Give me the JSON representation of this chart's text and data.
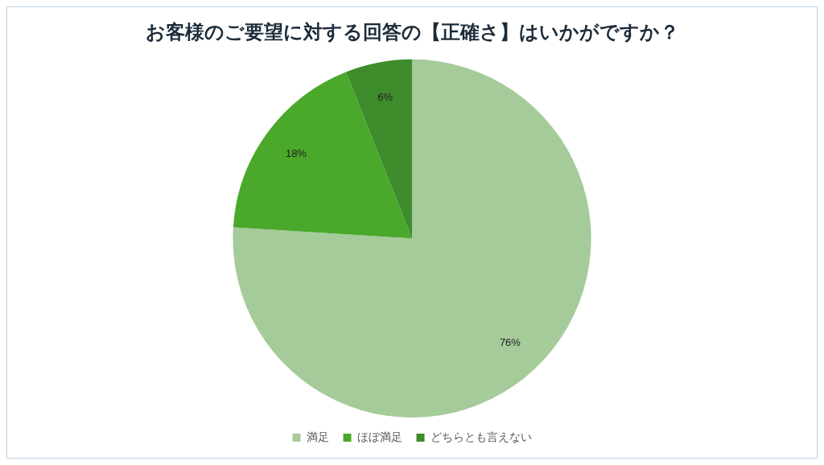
{
  "chart_data": {
    "type": "pie",
    "title": "お客様のご要望に対する回答の【正確さ】はいかがですか？",
    "categories": [
      "満足",
      "ほぼ満足",
      "どちらとも言えない"
    ],
    "values": [
      76,
      18,
      6
    ],
    "colors": [
      "#a6cb9a",
      "#4aa92b",
      "#3e8c2b"
    ],
    "value_labels": [
      "76%",
      "18%",
      "6%"
    ],
    "legend": "bottom"
  }
}
